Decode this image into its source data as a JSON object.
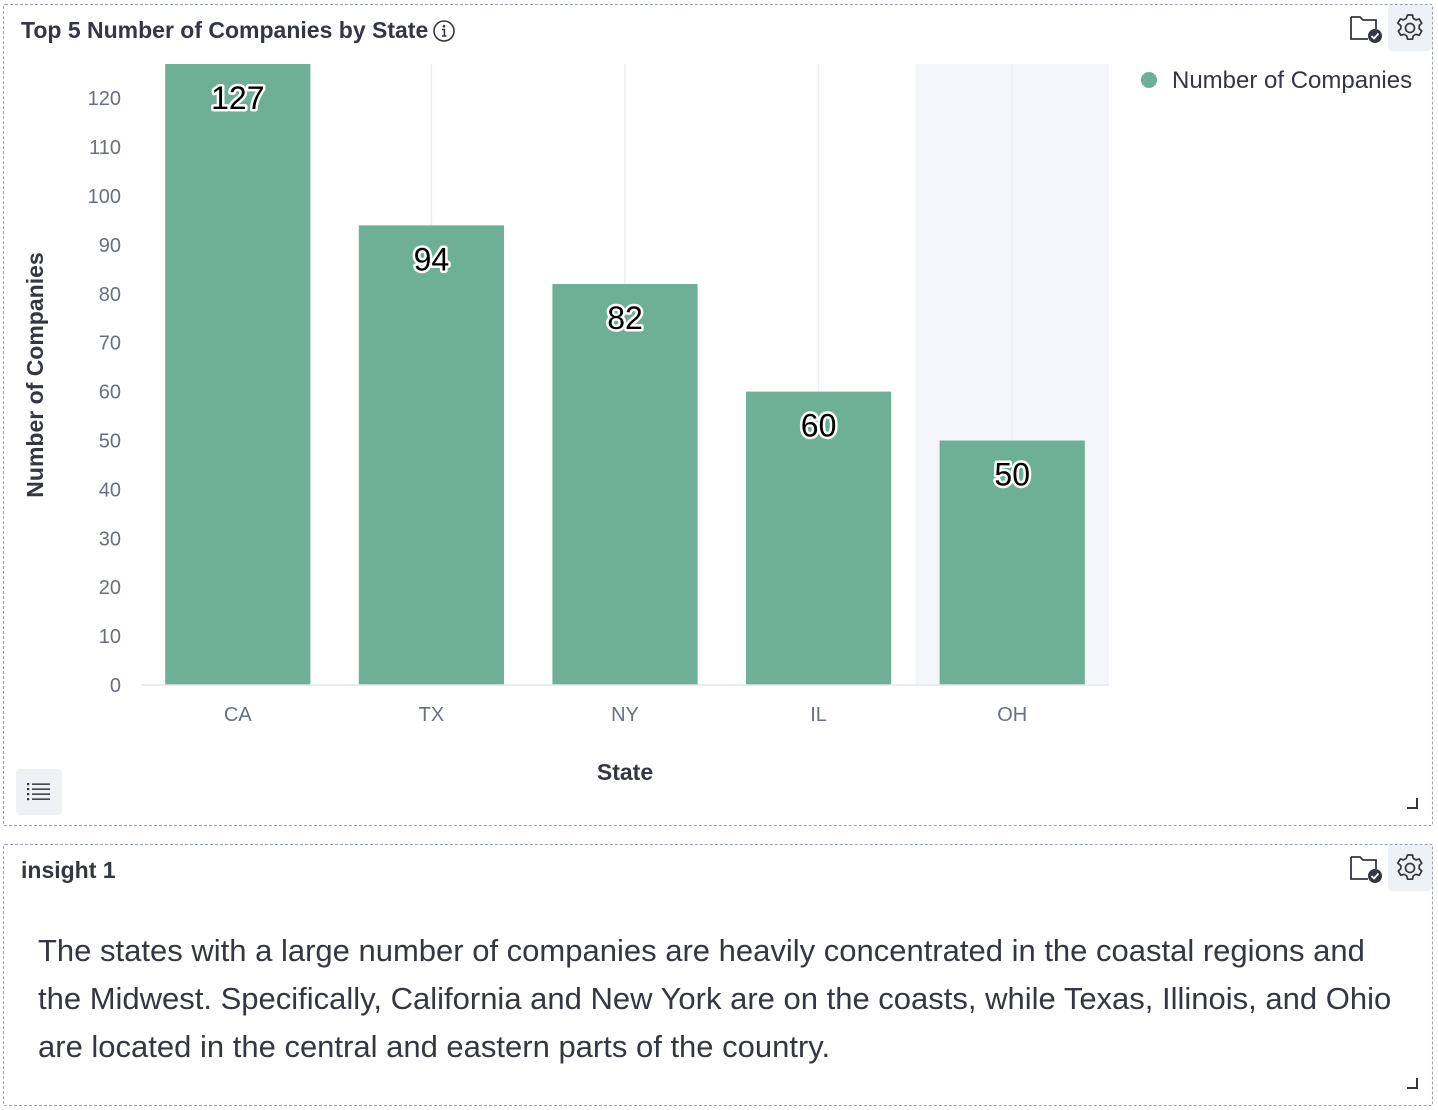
{
  "chart_panel": {
    "title": "Top 5 Number of Companies by State"
  },
  "insight_panel": {
    "title": "insight 1",
    "text": "The states with a large number of companies are heavily concentrated in the coastal regions and the Midwest. Specifically, California and New York are on the coasts, while Texas, Illinois, and Ohio are located in the central and eastern parts of the country."
  },
  "icons": {
    "info": "info-icon",
    "save": "folder-check-icon",
    "settings": "gear-icon",
    "legend_toggle": "list-icon"
  },
  "colors": {
    "bar": "#6daf97",
    "highlight_band": "#f5f6fa"
  },
  "chart_data": {
    "type": "bar",
    "categories": [
      "CA",
      "TX",
      "NY",
      "IL",
      "OH"
    ],
    "series": [
      {
        "name": "Number of Companies",
        "values": [
          127,
          94,
          82,
          60,
          50
        ]
      }
    ],
    "xlabel": "State",
    "ylabel": "Number of Companies",
    "ylim": [
      0,
      127
    ],
    "yticks": [
      0,
      10,
      20,
      30,
      40,
      50,
      60,
      70,
      80,
      90,
      100,
      110,
      120
    ],
    "data_labels": true,
    "grid": "vertical",
    "highlighted_category": "OH",
    "legend": "top-right"
  }
}
